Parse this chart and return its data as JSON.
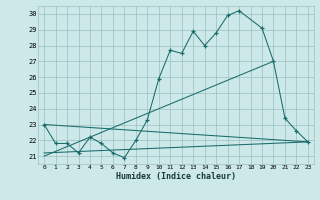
{
  "xlabel": "Humidex (Indice chaleur)",
  "bg_color": "#cce8e8",
  "grid_color": "#9bbfbf",
  "line_color": "#1a6b6b",
  "xlim": [
    -0.5,
    23.5
  ],
  "ylim": [
    20.5,
    30.5
  ],
  "yticks": [
    21,
    22,
    23,
    24,
    25,
    26,
    27,
    28,
    29,
    30
  ],
  "xticks": [
    0,
    1,
    2,
    3,
    4,
    5,
    6,
    7,
    8,
    9,
    10,
    11,
    12,
    13,
    14,
    15,
    16,
    17,
    18,
    19,
    20,
    21,
    22,
    23
  ],
  "series1_x": [
    0,
    1,
    2,
    3,
    4,
    5,
    6,
    7,
    8,
    9,
    10,
    11,
    12,
    13,
    14,
    15,
    16,
    17,
    19,
    20,
    21,
    22,
    23
  ],
  "series1_y": [
    23.0,
    21.8,
    21.8,
    21.2,
    22.2,
    21.8,
    21.2,
    20.9,
    22.0,
    23.3,
    25.9,
    27.7,
    27.5,
    28.9,
    28.0,
    28.8,
    29.9,
    30.2,
    29.1,
    27.0,
    23.4,
    22.6,
    21.9
  ],
  "series2_x": [
    0,
    23
  ],
  "series2_y": [
    23.0,
    21.9
  ],
  "series3_x": [
    0,
    20
  ],
  "series3_y": [
    21.0,
    27.0
  ],
  "series4_x": [
    0,
    23
  ],
  "series4_y": [
    21.2,
    21.9
  ]
}
